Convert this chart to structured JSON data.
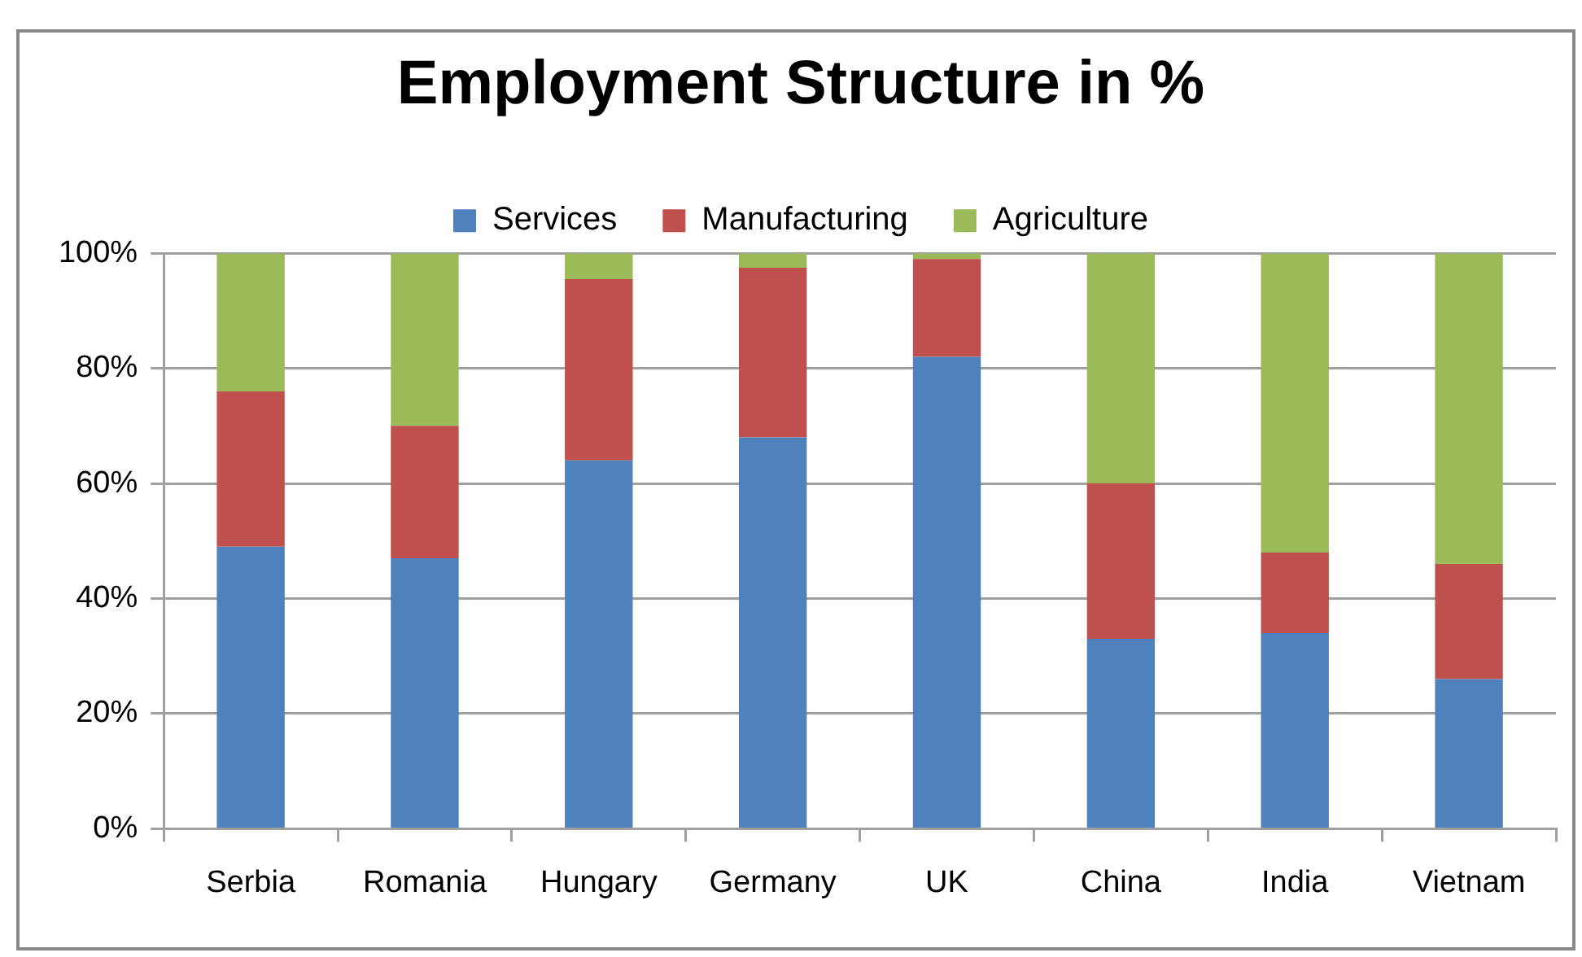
{
  "chart_data": {
    "type": "bar",
    "title": "Employment Structure in %",
    "categories": [
      "Serbia",
      "Romania",
      "Hungary",
      "Germany",
      "UK",
      "China",
      "India",
      "Vietnam"
    ],
    "series": [
      {
        "name": "Services",
        "color": "#4f81bd",
        "values": [
          49,
          47,
          64,
          68,
          82,
          33,
          34,
          26
        ]
      },
      {
        "name": "Manufacturing",
        "color": "#c0504d",
        "values": [
          27,
          23,
          31.5,
          29.5,
          17,
          27,
          14,
          20
        ]
      },
      {
        "name": "Agriculture",
        "color": "#9bbb59",
        "values": [
          24,
          30,
          4.5,
          2.5,
          1,
          40,
          52,
          54
        ]
      }
    ],
    "stacked": true,
    "ylim": [
      0,
      100
    ],
    "yticks": [
      {
        "value": 0,
        "label": "0%"
      },
      {
        "value": 20,
        "label": "20%"
      },
      {
        "value": 40,
        "label": "40%"
      },
      {
        "value": 60,
        "label": "60%"
      },
      {
        "value": 80,
        "label": "80%"
      },
      {
        "value": 100,
        "label": "100%"
      }
    ],
    "grid": "y",
    "legend": "top"
  }
}
